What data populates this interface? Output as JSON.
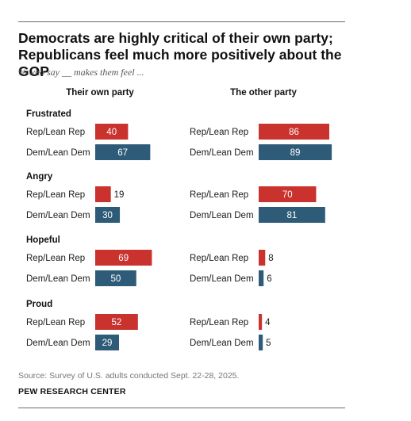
{
  "title_line1": "Democrats are highly critical of their own party;",
  "title_line2": "Republicans feel much more positively about the GOP",
  "subtitle": "% who say __ makes them feel ...",
  "colors": {
    "rep": "#c9322d",
    "dem": "#2e5c78",
    "rep_label": "#c9322d"
  },
  "chart_data": {
    "type": "bar",
    "orientation": "horizontal",
    "panels": [
      "Their own party",
      "The other party"
    ],
    "groups": [
      "Frustrated",
      "Angry",
      "Hopeful",
      "Proud"
    ],
    "series": [
      {
        "name": "Rep/Lean Rep",
        "own": [
          40,
          19,
          69,
          52
        ],
        "other": [
          86,
          70,
          8,
          4
        ]
      },
      {
        "name": "Dem/Lean Dem",
        "own": [
          67,
          30,
          50,
          29
        ],
        "other": [
          89,
          81,
          6,
          5
        ]
      }
    ],
    "xlim": [
      0,
      100
    ]
  },
  "source": "Source: Survey of U.S. adults conducted Sept. 22-28, 2025.",
  "org": "PEW RESEARCH CENTER"
}
